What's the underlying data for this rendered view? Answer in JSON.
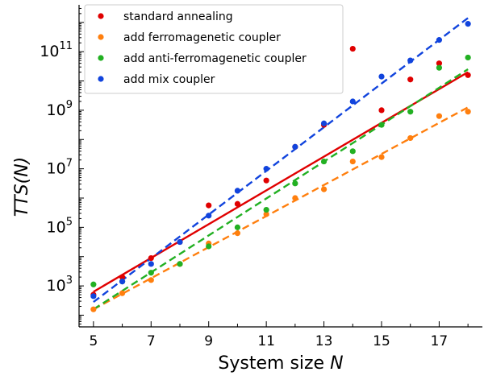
{
  "chart_data": {
    "type": "scatter",
    "title": "",
    "xlabel": "System size",
    "xlabel_var": "N",
    "ylabel": "TTS(N)",
    "x_ticks": [
      5,
      7,
      9,
      11,
      13,
      15,
      17
    ],
    "y_tick_exponents": [
      3,
      5,
      7,
      9,
      11
    ],
    "y_tick_base": "10",
    "xlim": [
      4.5,
      18.5
    ],
    "ylim_log10": [
      1.6,
      12.6
    ],
    "y_scale": "log",
    "grid": false,
    "legend_position": "top-left",
    "series": [
      {
        "name": "standard annealing",
        "color": "#e00000",
        "line_style": "solid",
        "x": [
          5,
          6,
          7,
          8,
          9,
          10,
          11,
          12,
          13,
          14,
          15,
          16,
          17,
          18
        ],
        "y_log10": [
          2.7,
          3.3,
          3.95,
          4.5,
          5.75,
          5.8,
          6.6,
          7.75,
          8.5,
          11.1,
          9.0,
          10.05,
          10.6,
          10.2
        ],
        "fit_log10": [
          2.8,
          10.3
        ]
      },
      {
        "name": "add ferromagenetic coupler",
        "color": "#ff7f0e",
        "line_style": "dashed",
        "x": [
          5,
          6,
          7,
          8,
          9,
          10,
          11,
          12,
          13,
          14,
          15,
          16,
          17,
          18
        ],
        "y_log10": [
          2.2,
          2.75,
          3.2,
          3.75,
          4.45,
          4.8,
          5.45,
          6.0,
          6.3,
          7.25,
          7.4,
          8.05,
          8.8,
          8.95
        ],
        "fit_log10": [
          2.2,
          9.1
        ]
      },
      {
        "name": "add anti-ferromagenetic coupler",
        "color": "#22b022",
        "line_style": "dashed",
        "x": [
          5,
          6,
          7,
          8,
          9,
          10,
          11,
          12,
          13,
          14,
          15,
          16,
          17,
          18
        ],
        "y_log10": [
          3.05,
          3.15,
          3.45,
          3.75,
          4.35,
          5.0,
          5.6,
          6.5,
          7.25,
          7.6,
          8.5,
          8.95,
          10.45,
          10.8
        ],
        "fit_log10": [
          2.2,
          10.4
        ]
      },
      {
        "name": "add mix coupler",
        "color": "#1144dd",
        "line_style": "dashed",
        "x": [
          5,
          6,
          7,
          8,
          9,
          10,
          11,
          12,
          13,
          14,
          15,
          16,
          17,
          18
        ],
        "y_log10": [
          2.65,
          3.15,
          3.75,
          4.5,
          5.4,
          6.25,
          7.0,
          7.75,
          8.55,
          9.3,
          10.15,
          10.7,
          11.4,
          11.95
        ],
        "fit_log10": [
          2.45,
          12.15
        ]
      }
    ]
  }
}
